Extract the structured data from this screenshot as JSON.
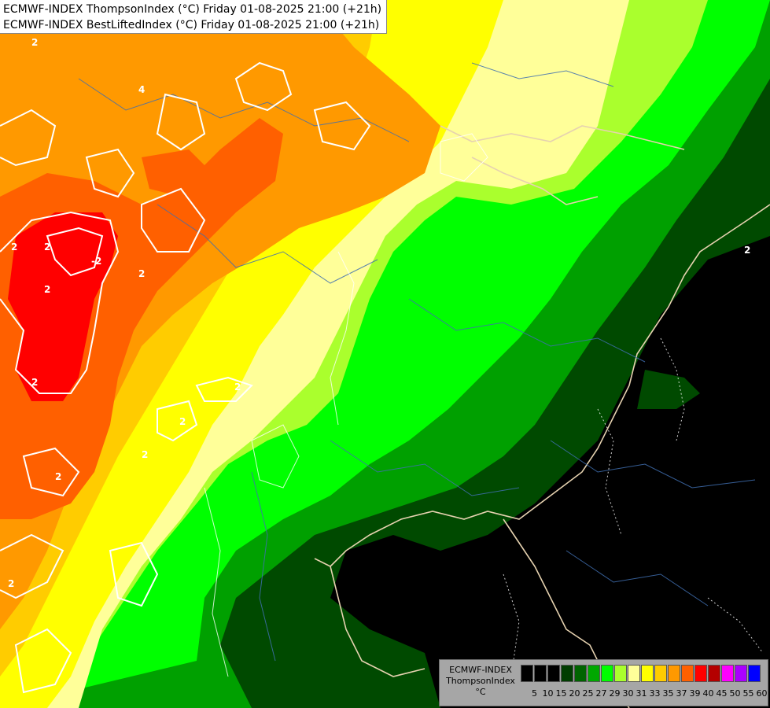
{
  "title": {
    "line1": "ECMWF-INDEX ThompsonIndex (°C) Friday 01-08-2025 21:00 (+21h)",
    "line2": "ECMWF-INDEX BestLiftedIndex (°C) Friday 01-08-2025 21:00 (+21h)"
  },
  "legend": {
    "model": "ECMWF-INDEX",
    "parameter": "ThompsonIndex",
    "unit": "°C",
    "ticks": [
      "5",
      "10",
      "15",
      "20",
      "25",
      "27",
      "29",
      "30",
      "31",
      "33",
      "35",
      "37",
      "39",
      "40",
      "45",
      "50",
      "55",
      "60"
    ],
    "colors": [
      "#000000",
      "#000000",
      "#000000",
      "#003d00",
      "#006400",
      "#00a800",
      "#00ff00",
      "#aaff2d",
      "#ffff99",
      "#ffff00",
      "#ffcc00",
      "#ff9900",
      "#ff6000",
      "#ff0000",
      "#b40000",
      "#ff00ff",
      "#aa00ff",
      "#0000ff"
    ]
  },
  "contour_labels": [
    "2",
    "2",
    "2",
    "2",
    "2",
    "2",
    "2",
    "2",
    "2",
    "2",
    "4",
    "2",
    "-2",
    "2"
  ]
}
